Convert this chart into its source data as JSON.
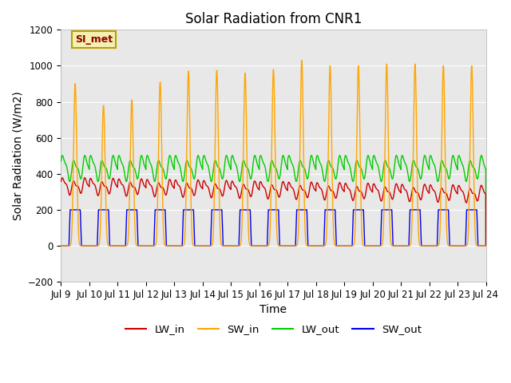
{
  "title": "Solar Radiation from CNR1",
  "xlabel": "Time",
  "ylabel": "Solar Radiation (W/m2)",
  "ylim": [
    -200,
    1200
  ],
  "xlim_days": [
    0,
    15
  ],
  "x_tick_labels": [
    "Jul 9",
    "Jul 10",
    "Jul 11",
    "Jul 12",
    "Jul 13",
    "Jul 14",
    "Jul 15",
    "Jul 16",
    "Jul 17",
    "Jul 18",
    "Jul 19",
    "Jul 20",
    "Jul 21",
    "Jul 22",
    "Jul 23",
    "Jul 24"
  ],
  "series": {
    "LW_in": {
      "color": "#cc0000",
      "linewidth": 1.0
    },
    "SW_in": {
      "color": "#ffa500",
      "linewidth": 1.0
    },
    "LW_out": {
      "color": "#00cc00",
      "linewidth": 1.0
    },
    "SW_out": {
      "color": "#0000ee",
      "linewidth": 1.0
    }
  },
  "annotation_text": "SI_met",
  "annotation_color": "#8b0000",
  "annotation_bg": "#f5f0b0",
  "annotation_border": "#b8a000",
  "background_color": "#e8e8e8",
  "grid_color": "#ffffff",
  "title_fontsize": 12,
  "axis_fontsize": 10,
  "tick_fontsize": 8.5,
  "sw_in_peaks": [
    900,
    780,
    810,
    910,
    970,
    975,
    960,
    980,
    1030,
    1000,
    1000,
    1010,
    1010,
    1000,
    1000
  ],
  "sw_out_flat": 200,
  "lw_in_base": 330,
  "lw_in_trend": -3,
  "lw_out_base": 430
}
